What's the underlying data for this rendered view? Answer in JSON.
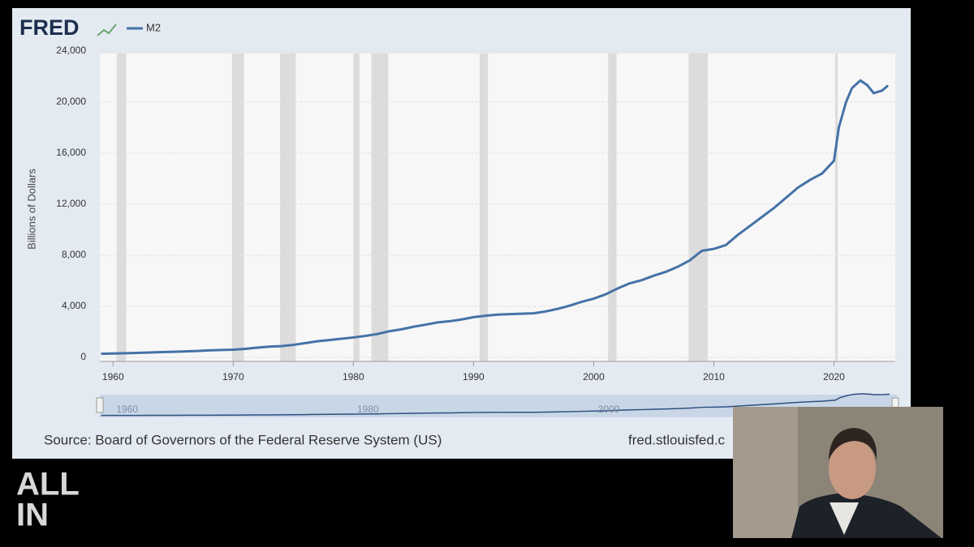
{
  "brand": "FRED",
  "source": "Source: Board of Governors of the Federal Reserve System (US)",
  "url": "fred.stlouisfed.c",
  "overlay": [
    "ALL",
    "IN"
  ],
  "chart_data": {
    "type": "line",
    "y_label": "Billions of Dollars",
    "x": [
      1959,
      1960,
      1961,
      1962,
      1963,
      1964,
      1965,
      1966,
      1967,
      1968,
      1969,
      1970,
      1971,
      1972,
      1973,
      1974,
      1975,
      1976,
      1977,
      1978,
      1979,
      1980,
      1981,
      1982,
      1983,
      1984,
      1985,
      1986,
      1987,
      1988,
      1989,
      1990,
      1991,
      1992,
      1993,
      1994,
      1995,
      1996,
      1997,
      1998,
      1999,
      2000,
      2001,
      2002,
      2003,
      2004,
      2005,
      2006,
      2007,
      2008,
      2009,
      2010,
      2011,
      2012,
      2013,
      2014,
      2015,
      2016,
      2017,
      2018,
      2019,
      2020,
      2020.4,
      2021,
      2021.5,
      2022.2,
      2022.8,
      2023.3,
      2024,
      2024.5
    ],
    "series": [
      {
        "name": "M2",
        "color": "#4572a7",
        "values": [
          286,
          304,
          324,
          350,
          380,
          410,
          440,
          470,
          500,
          545,
          580,
          600,
          670,
          760,
          840,
          880,
          980,
          1120,
          1260,
          1360,
          1460,
          1560,
          1680,
          1830,
          2050,
          2200,
          2400,
          2560,
          2740,
          2830,
          2970,
          3150,
          3260,
          3350,
          3390,
          3420,
          3450,
          3600,
          3800,
          4050,
          4350,
          4600,
          4940,
          5400,
          5800,
          6050,
          6400,
          6700,
          7100,
          7600,
          8350,
          8500,
          8800,
          9600,
          10300,
          11000,
          11700,
          12500,
          13300,
          13900,
          14400,
          15400,
          18000,
          20000,
          21100,
          21700,
          21300,
          20700,
          20900,
          21300
        ]
      }
    ],
    "recessions": [
      [
        1960.3,
        1961.1
      ],
      [
        1969.9,
        1970.9
      ],
      [
        1973.9,
        1975.2
      ],
      [
        1980.0,
        1980.5
      ],
      [
        1981.5,
        1982.9
      ],
      [
        1990.5,
        1991.2
      ],
      [
        2001.2,
        2001.9
      ],
      [
        2007.9,
        2009.5
      ],
      [
        2020.1,
        2020.3
      ]
    ],
    "xlim": [
      1958.9,
      2025.1
    ],
    "ylim": [
      0,
      24000
    ],
    "xticks": [
      1960,
      1970,
      1980,
      1990,
      2000,
      2010,
      2020
    ],
    "yticks": [
      0,
      {
        "value": 4000,
        "label": "4,000"
      },
      {
        "value": 8000,
        "label": "8,000"
      },
      {
        "value": 12000,
        "label": "12,000"
      },
      {
        "value": 16000,
        "label": "16,000"
      },
      {
        "value": 20000,
        "label": "20,000"
      },
      {
        "value": 24000,
        "label": "24,000"
      }
    ],
    "navigator_xticks": [
      1960,
      1980,
      2000
    ],
    "grid": true
  }
}
